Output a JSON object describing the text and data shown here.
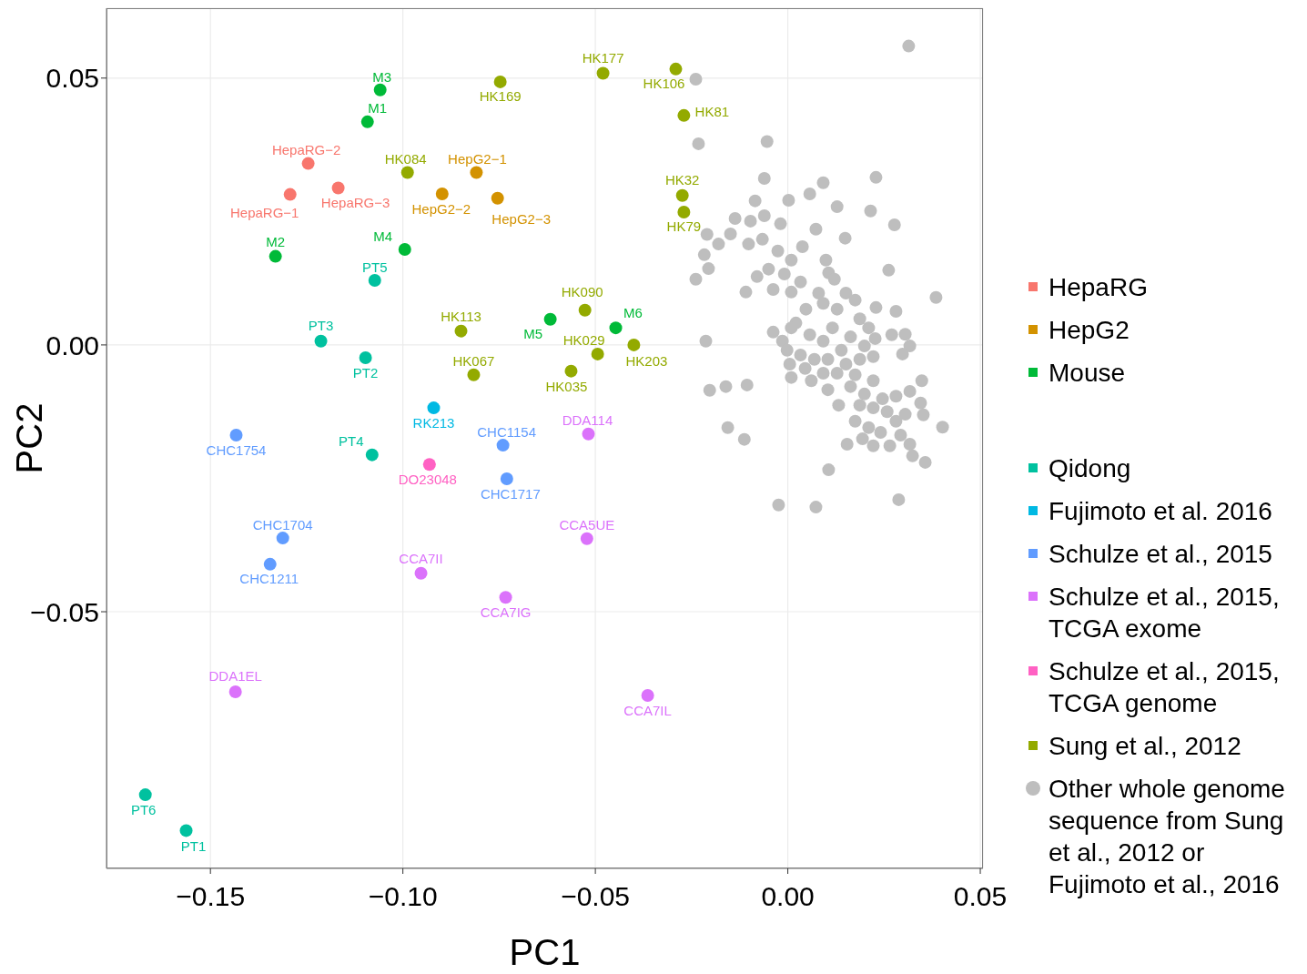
{
  "chart_data": {
    "type": "scatter",
    "xlabel": "PC1",
    "ylabel": "PC2",
    "xlim": [
      -0.177,
      0.0507
    ],
    "ylim": [
      -0.0981,
      0.0631
    ],
    "xticks": [
      {
        "value": -0.15,
        "label": "−0.15"
      },
      {
        "value": -0.1,
        "label": "−0.10"
      },
      {
        "value": -0.05,
        "label": "−0.05"
      },
      {
        "value": 0,
        "label": "0.00"
      },
      0.05
    ],
    "yticks": [
      {
        "value": -0.05,
        "label": "−0.05"
      },
      {
        "value": 0,
        "label": "0.00"
      },
      0.05
    ],
    "grid": true,
    "legend": "right",
    "marker": "circle",
    "series": [
      {
        "name": "HepaRG",
        "color": "#f8766d",
        "x": [
          -0.1246,
          -0.1293,
          -0.1168
        ],
        "values": [
          0.034,
          0.0282,
          0.0294
        ],
        "value_labels": [
          "HepaRG−2",
          "HepaRG−1",
          "HepaRG−3"
        ]
      },
      {
        "name": "HepG2",
        "color": "#d39200",
        "x": [
          -0.0809,
          -0.0898,
          -0.0754
        ],
        "values": [
          0.0323,
          0.0283,
          0.0275
        ],
        "value_labels": [
          "HepG2−1",
          "HepG2−2",
          "HepG2−3"
        ]
      },
      {
        "name": "Mouse",
        "color": "#00ba38",
        "x": [
          -0.1059,
          -0.1092,
          -0.1331,
          -0.0995,
          -0.0617,
          -0.0447
        ],
        "values": [
          0.0478,
          0.0418,
          0.0166,
          0.0179,
          0.0048,
          0.0032
        ],
        "value_labels": [
          "M3",
          "M1",
          "M2",
          "M4",
          "M5",
          "M6"
        ]
      },
      {
        "name": "Qidong",
        "color": "#00c19f",
        "x": [
          -0.1073,
          -0.1213,
          -0.1097,
          -0.108,
          -0.1669,
          -0.1563
        ],
        "values": [
          0.0121,
          0.0007,
          -0.0024,
          -0.0206,
          -0.0843,
          -0.091
        ],
        "value_labels": [
          "PT5",
          "PT3",
          "PT2",
          "PT4",
          "PT6",
          "PT1"
        ]
      },
      {
        "name": "Fujimoto et al. 2016",
        "color": "#00b9e3",
        "x": [
          -0.092
        ],
        "values": [
          -0.0118
        ],
        "value_labels": [
          "RK213"
        ]
      },
      {
        "name": "Schulze et al., 2015",
        "color": "#619cff",
        "x": [
          -0.1433,
          -0.074,
          -0.073,
          -0.1312,
          -0.1345
        ],
        "values": [
          -0.0169,
          -0.0188,
          -0.0251,
          -0.0362,
          -0.0411
        ],
        "value_labels": [
          "CHC1754",
          "CHC1154",
          "CHC1717",
          "CHC1704",
          "CHC1211"
        ]
      },
      {
        "name": "Schulze et al., 2015, TCGA exome",
        "color": "#db72fb",
        "x": [
          -0.0518,
          -0.0522,
          -0.0953,
          -0.0733,
          -0.1435,
          -0.0364
        ],
        "values": [
          -0.0167,
          -0.0363,
          -0.0428,
          -0.0473,
          -0.065,
          -0.0657
        ],
        "value_labels": [
          "DDA114",
          "CCA5UE",
          "CCA7II",
          "CCA7IG",
          "DDA1EL",
          "CCA7IL"
        ]
      },
      {
        "name": "Schulze et al., 2015, TCGA genome",
        "color": "#ff61c3",
        "x": [
          -0.0931
        ],
        "values": [
          -0.0224
        ],
        "value_labels": [
          "DO23048"
        ]
      },
      {
        "name": "Sung et al., 2012",
        "color": "#93aa00",
        "x": [
          -0.048,
          -0.0291,
          -0.0747,
          -0.027,
          -0.0988,
          -0.0274,
          -0.027,
          -0.0527,
          -0.0849,
          -0.0494,
          -0.04,
          -0.0816,
          -0.0563
        ],
        "values": [
          0.0509,
          0.0517,
          0.0493,
          0.043,
          0.0323,
          0.028,
          0.0249,
          0.0065,
          0.0026,
          -0.0017,
          0,
          -0.0056,
          -0.0049
        ],
        "value_labels": [
          "HK177",
          "HK106",
          "HK169",
          "HK81",
          "HK084",
          "HK32",
          "HK79",
          "HK090",
          "HK113",
          "HK029",
          "HK203",
          "HK067",
          "HK035"
        ]
      },
      {
        "name": "Other whole genome sequence from Sung et al., 2012 or Fujimoto et al., 2016",
        "color": "#bebebe",
        "x": [
          0.0314,
          -0.0239,
          -0.0232,
          -0.0054,
          -0.0061,
          0.0229,
          0.0092,
          -0.0085,
          0.0002,
          0.0057,
          0.0128,
          0.0215,
          0.0277,
          -0.0137,
          -0.0097,
          -0.0061,
          -0.0019,
          -0.021,
          -0.018,
          -0.0149,
          -0.0102,
          -0.0066,
          -0.0026,
          0.0009,
          0.0038,
          0.0073,
          0.0149,
          -0.0217,
          -0.0206,
          -0.0239,
          -0.005,
          -0.0009,
          -0.0109,
          -0.008,
          0.0099,
          0.0106,
          0.0262,
          0.0385,
          -0.0038,
          0.0009,
          0.0033,
          0.008,
          0.0121,
          0.0151,
          0.0175,
          0.0229,
          0.0281,
          0.0047,
          0.0092,
          0.0128,
          0.0187,
          0.021,
          0.0021,
          -0.0038,
          -0.0014,
          0.0009,
          0.0057,
          0.0092,
          0.0116,
          0.0139,
          0.0163,
          0.0199,
          0.0227,
          0.027,
          0.0305,
          0.0317,
          -0.0213,
          -0.0002,
          0.0033,
          0.0069,
          0.0104,
          0.0151,
          0.0187,
          0.0222,
          0.0298,
          0.0005,
          0.0045,
          0.0092,
          0.0128,
          0.0175,
          0.0222,
          0.0348,
          -0.0203,
          -0.0161,
          -0.0106,
          0.0009,
          0.0061,
          0.0104,
          0.0163,
          0.0199,
          0.0246,
          0.0281,
          0.0317,
          0.0345,
          0.0132,
          0.0187,
          0.0222,
          0.0258,
          0.0305,
          0.0352,
          0.0175,
          0.021,
          0.0281,
          0.0402,
          0.0241,
          0.0293,
          0.0317,
          0.0265,
          -0.0156,
          -0.0113,
          0.0154,
          0.0222,
          0.0194,
          0.0324,
          0.0357,
          0.0106,
          -0.0024,
          0.0073,
          0.0288
        ],
        "values": [
          0.056,
          0.0498,
          0.0377,
          0.0381,
          0.0312,
          0.0314,
          0.0304,
          0.027,
          0.0271,
          0.0283,
          0.0259,
          0.0251,
          0.0225,
          0.0237,
          0.0232,
          0.0242,
          0.0227,
          0.0207,
          0.0189,
          0.0208,
          0.0189,
          0.0198,
          0.0176,
          0.0159,
          0.0184,
          0.0217,
          0.02,
          0.0169,
          0.0143,
          0.0123,
          0.0142,
          0.0133,
          0.0099,
          0.0128,
          0.0159,
          0.0135,
          0.014,
          0.0089,
          0.0104,
          0.0099,
          0.0118,
          0.0097,
          0.0123,
          0.0097,
          0.0084,
          0.007,
          0.0063,
          0.0067,
          0.0078,
          0.0067,
          0.0049,
          0.0032,
          0.0041,
          0.0024,
          0.0007,
          0.0032,
          0.0019,
          0.0007,
          0.0032,
          -0.001,
          0.0015,
          -0.0002,
          0.0012,
          0.0019,
          0.002,
          -0.0002,
          0.0007,
          -0.001,
          -0.0019,
          -0.0027,
          -0.0027,
          -0.0036,
          -0.0027,
          -0.0022,
          -0.0017,
          -0.0036,
          -0.0044,
          -0.0053,
          -0.0053,
          -0.0056,
          -0.0067,
          -0.0067,
          -0.0085,
          -0.0078,
          -0.0075,
          -0.0061,
          -0.0067,
          -0.0084,
          -0.0078,
          -0.0092,
          -0.0101,
          -0.0096,
          -0.0087,
          -0.0109,
          -0.0113,
          -0.0113,
          -0.0118,
          -0.0125,
          -0.013,
          -0.0131,
          -0.0143,
          -0.0155,
          -0.0143,
          -0.0154,
          -0.0164,
          -0.0169,
          -0.0186,
          -0.0189,
          -0.0155,
          -0.0177,
          -0.0186,
          -0.0189,
          -0.0176,
          -0.0208,
          -0.022,
          -0.0234,
          -0.03,
          -0.0304,
          -0.029
        ]
      }
    ]
  }
}
